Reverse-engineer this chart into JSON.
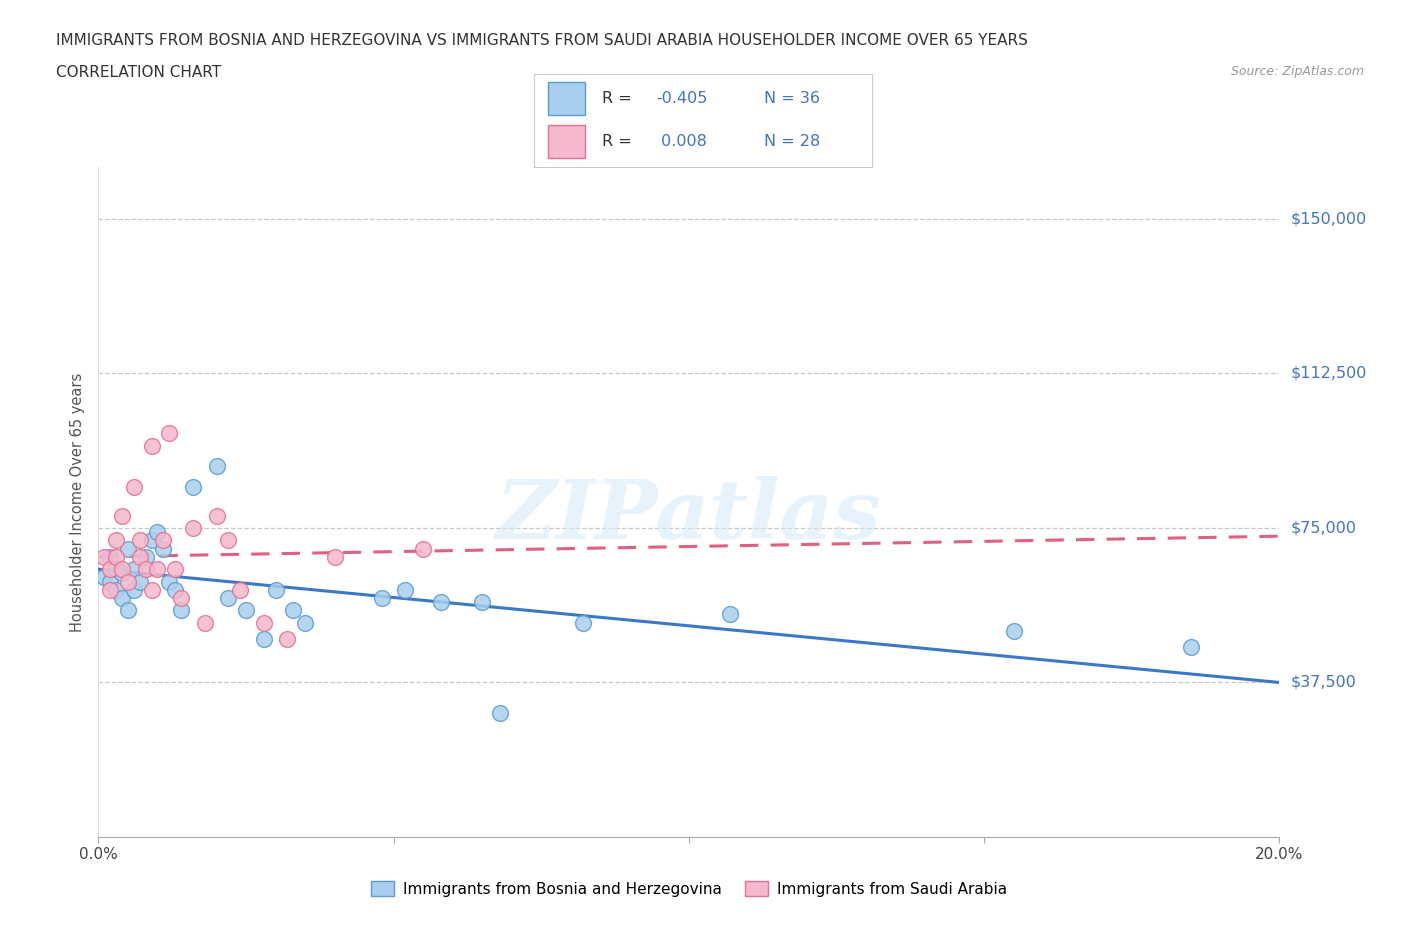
{
  "title_line1": "IMMIGRANTS FROM BOSNIA AND HERZEGOVINA VS IMMIGRANTS FROM SAUDI ARABIA HOUSEHOLDER INCOME OVER 65 YEARS",
  "title_line2": "CORRELATION CHART",
  "source": "Source: ZipAtlas.com",
  "ylabel": "Householder Income Over 65 years",
  "xlim": [
    0.0,
    0.2
  ],
  "ylim": [
    0,
    162500
  ],
  "ytick_vals": [
    0,
    37500,
    75000,
    112500,
    150000
  ],
  "ytick_labels": [
    "",
    "$37,500",
    "$75,000",
    "$112,500",
    "$150,000"
  ],
  "xtick_vals": [
    0.0,
    0.05,
    0.1,
    0.15,
    0.2
  ],
  "xtick_labels": [
    "0.0%",
    "",
    "",
    "",
    "20.0%"
  ],
  "bosnia_color": "#A8CFED",
  "saudi_color": "#F5B8CC",
  "bosnia_edge_color": "#5B9BD5",
  "saudi_edge_color": "#E87090",
  "bosnia_line_color": "#3A78C9",
  "saudi_line_color": "#E06080",
  "r_text_color": "#4472C4",
  "legend_label_bosnia": "Immigrants from Bosnia and Herzegovina",
  "legend_label_saudi": "Immigrants from Saudi Arabia",
  "watermark": "ZIPatlas",
  "bg_color": "#FFFFFF",
  "bosnia_x": [
    0.001,
    0.002,
    0.002,
    0.003,
    0.003,
    0.004,
    0.004,
    0.005,
    0.005,
    0.006,
    0.006,
    0.007,
    0.008,
    0.009,
    0.01,
    0.011,
    0.012,
    0.013,
    0.014,
    0.016,
    0.02,
    0.022,
    0.025,
    0.028,
    0.03,
    0.033,
    0.035,
    0.048,
    0.052,
    0.058,
    0.065,
    0.068,
    0.082,
    0.107,
    0.155,
    0.185
  ],
  "bosnia_y": [
    63000,
    62000,
    68000,
    60000,
    65000,
    58000,
    64000,
    55000,
    70000,
    60000,
    65000,
    62000,
    68000,
    72000,
    74000,
    70000,
    62000,
    60000,
    55000,
    85000,
    90000,
    58000,
    55000,
    48000,
    60000,
    55000,
    52000,
    58000,
    60000,
    57000,
    57000,
    30000,
    52000,
    54000,
    50000,
    46000
  ],
  "saudi_x": [
    0.001,
    0.002,
    0.002,
    0.003,
    0.003,
    0.004,
    0.004,
    0.005,
    0.006,
    0.007,
    0.007,
    0.008,
    0.009,
    0.009,
    0.01,
    0.011,
    0.012,
    0.013,
    0.014,
    0.016,
    0.018,
    0.02,
    0.022,
    0.024,
    0.028,
    0.032,
    0.04,
    0.055
  ],
  "saudi_y": [
    68000,
    60000,
    65000,
    72000,
    68000,
    78000,
    65000,
    62000,
    85000,
    72000,
    68000,
    65000,
    60000,
    95000,
    65000,
    72000,
    98000,
    65000,
    58000,
    75000,
    52000,
    78000,
    72000,
    60000,
    52000,
    48000,
    68000,
    70000
  ]
}
